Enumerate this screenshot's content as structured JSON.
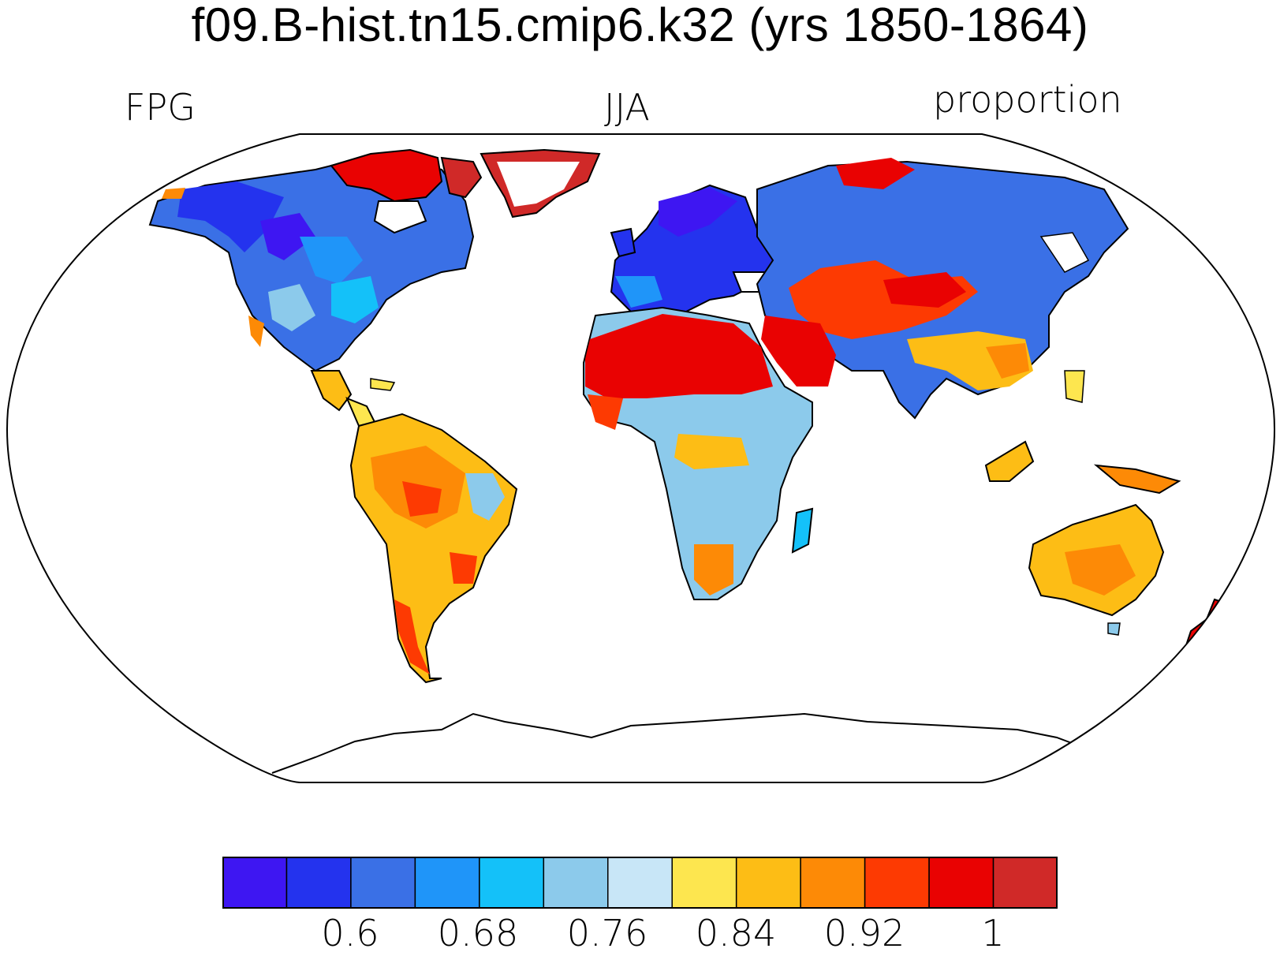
{
  "header": {
    "title": "f09.B-hist.tn15.cmip6.k32 (yrs 1850-1864)",
    "left_label": "FPG",
    "center_label": "JJA",
    "right_label": "proportion"
  },
  "map": {
    "projection": "Robinson",
    "field": "FPG",
    "season": "JJA",
    "units": "proportion"
  },
  "colorbar": {
    "colors": [
      "#3e16f2",
      "#2433ee",
      "#3a70e6",
      "#1f95f9",
      "#14c1f9",
      "#8ccaeb",
      "#c8e6f7",
      "#fde64f",
      "#fdbd15",
      "#fd8a06",
      "#fd3a02",
      "#e90202",
      "#d02928"
    ],
    "tick_labels": [
      "0.6",
      "0.68",
      "0.76",
      "0.84",
      "0.92",
      "1"
    ],
    "tick_values": [
      0.6,
      0.68,
      0.76,
      0.84,
      0.92,
      1.0
    ],
    "levels": [
      0.56,
      0.58,
      0.6,
      0.62,
      0.64,
      0.66,
      0.68,
      0.7,
      0.72,
      0.74,
      0.76,
      0.78,
      0.8,
      0.82,
      0.84,
      0.86,
      0.88,
      0.9,
      0.92,
      0.94,
      0.96,
      0.98,
      1.0
    ]
  }
}
